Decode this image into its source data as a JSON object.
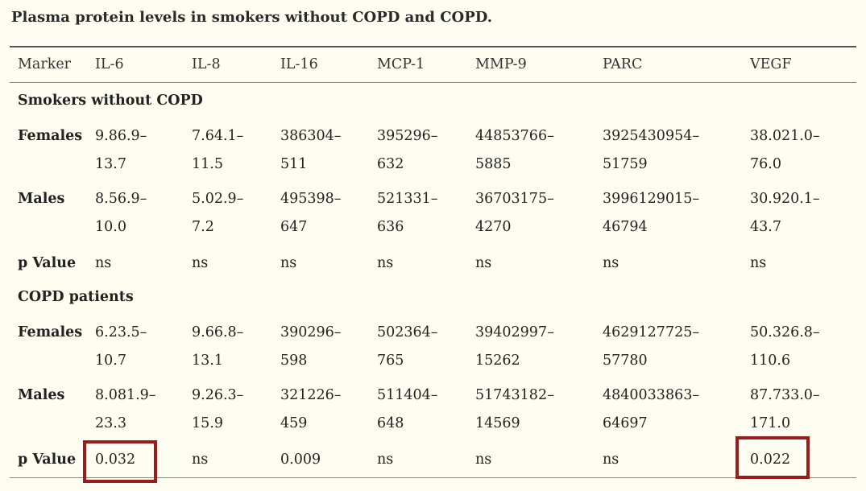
{
  "caption": "Plasma protein levels in smokers without COPD and COPD.",
  "columns": [
    "Marker",
    "IL-6",
    "IL-8",
    "IL-16",
    "MCP-1",
    "MMP-9",
    "PARC",
    "VEGF"
  ],
  "sections": [
    {
      "title": "Smokers without COPD",
      "rows": [
        {
          "label": "Females",
          "cells": [
            [
              "9.86.9–",
              "13.7"
            ],
            [
              "7.64.1–",
              "11.5"
            ],
            [
              "386304–",
              "511"
            ],
            [
              "395296–",
              "632"
            ],
            [
              "44853766–",
              "5885"
            ],
            [
              "3925430954–",
              "51759"
            ],
            [
              "38.021.0–",
              "76.0"
            ]
          ]
        },
        {
          "label": "Males",
          "cells": [
            [
              "8.56.9–",
              "10.0"
            ],
            [
              "5.02.9–",
              "7.2"
            ],
            [
              "495398–",
              "647"
            ],
            [
              "521331–",
              "636"
            ],
            [
              "36703175–",
              "4270"
            ],
            [
              "3996129015–",
              "46794"
            ],
            [
              "30.920.1–",
              "43.7"
            ]
          ]
        },
        {
          "label": "p Value",
          "cells": [
            [
              "ns"
            ],
            [
              "ns"
            ],
            [
              "ns"
            ],
            [
              "ns"
            ],
            [
              "ns"
            ],
            [
              "ns"
            ],
            [
              "ns"
            ]
          ]
        }
      ]
    },
    {
      "title": "COPD patients",
      "rows": [
        {
          "label": "Females",
          "cells": [
            [
              "6.23.5–",
              "10.7"
            ],
            [
              "9.66.8–",
              "13.1"
            ],
            [
              "390296–",
              "598"
            ],
            [
              "502364–",
              "765"
            ],
            [
              "39402997–",
              "15262"
            ],
            [
              "4629127725–",
              "57780"
            ],
            [
              "50.326.8–",
              "110.6"
            ]
          ]
        },
        {
          "label": "Males",
          "cells": [
            [
              "8.081.9–",
              "23.3"
            ],
            [
              "9.26.3–",
              "15.9"
            ],
            [
              "321226–",
              "459"
            ],
            [
              "511404–",
              "648"
            ],
            [
              "51743182–",
              "14569"
            ],
            [
              "4840033863–",
              "64697"
            ],
            [
              "87.733.0–",
              "171.0"
            ]
          ]
        },
        {
          "label": "p Value",
          "cells": [
            [
              "0.032"
            ],
            [
              "ns"
            ],
            [
              "0.009"
            ],
            [
              "ns"
            ],
            [
              "ns"
            ],
            [
              "ns"
            ],
            [
              "0.022"
            ]
          ]
        }
      ]
    }
  ],
  "highlight_color": "#9b1c1c"
}
